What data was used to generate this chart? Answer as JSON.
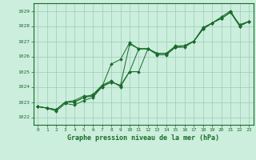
{
  "title": "Graphe pression niveau de la mer (hPa)",
  "bg_color": "#cceedd",
  "grid_color": "#99ccbb",
  "line_color": "#1a6b2a",
  "marker_color": "#1a6b2a",
  "xlim": [
    -0.5,
    23.5
  ],
  "ylim": [
    1021.5,
    1029.5
  ],
  "yticks": [
    1022,
    1023,
    1024,
    1025,
    1026,
    1027,
    1028,
    1029
  ],
  "xticks": [
    0,
    1,
    2,
    3,
    4,
    5,
    6,
    7,
    8,
    9,
    10,
    11,
    12,
    13,
    14,
    15,
    16,
    17,
    18,
    19,
    20,
    21,
    22,
    23
  ],
  "series": [
    [
      1022.7,
      1022.6,
      1022.4,
      1022.9,
      1022.8,
      1023.1,
      1023.3,
      1024.0,
      1025.5,
      1025.8,
      1026.9,
      1026.5,
      1026.5,
      1026.1,
      1026.1,
      1026.6,
      1026.6,
      1027.0,
      1027.8,
      1028.2,
      1028.6,
      1029.0,
      1028.0,
      1028.3
    ],
    [
      1022.7,
      1022.6,
      1022.5,
      1023.0,
      1023.0,
      1023.3,
      1023.5,
      1024.1,
      1024.3,
      1024.1,
      1026.8,
      1026.5,
      1026.5,
      1026.2,
      1026.2,
      1026.6,
      1026.7,
      1027.0,
      1027.8,
      1028.2,
      1028.5,
      1028.9,
      1028.1,
      1028.3
    ],
    [
      1022.7,
      1022.6,
      1022.5,
      1023.0,
      1023.1,
      1023.4,
      1023.4,
      1024.1,
      1024.4,
      1024.0,
      1025.0,
      1026.5,
      1026.5,
      1026.2,
      1026.2,
      1026.7,
      1026.7,
      1027.0,
      1027.9,
      1028.2,
      1028.5,
      1028.9,
      1028.0,
      1028.3
    ],
    [
      1022.7,
      1022.6,
      1022.5,
      1023.0,
      1023.0,
      1023.3,
      1023.4,
      1024.0,
      1024.3,
      1024.1,
      1025.0,
      1025.0,
      1026.5,
      1026.2,
      1026.2,
      1026.6,
      1026.7,
      1027.0,
      1027.8,
      1028.2,
      1028.5,
      1028.9,
      1028.0,
      1028.3
    ]
  ]
}
